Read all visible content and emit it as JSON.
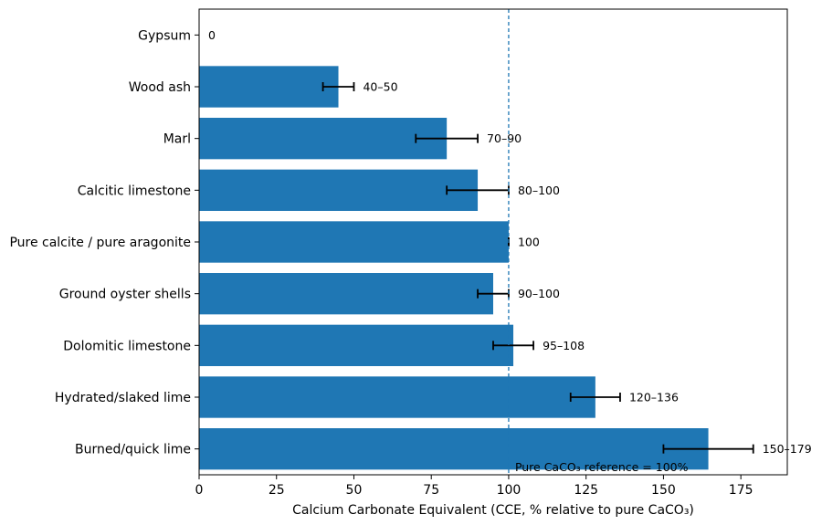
{
  "chart_data": {
    "type": "bar",
    "orientation": "horizontal",
    "categories": [
      "Gypsum",
      "Wood ash",
      "Marl",
      "Calcitic limestone",
      "Pure calcite / pure aragonite",
      "Ground oyster shells",
      "Dolomitic limestone",
      "Hydrated/slaked lime",
      "Burned/quick lime"
    ],
    "values": [
      0,
      45,
      80,
      90,
      100,
      95,
      101.5,
      128,
      164.5
    ],
    "error_ranges": [
      null,
      [
        40,
        50
      ],
      [
        70,
        90
      ],
      [
        80,
        100
      ],
      [
        100,
        100
      ],
      [
        90,
        100
      ],
      [
        95,
        108
      ],
      [
        120,
        136
      ],
      [
        150,
        179
      ]
    ],
    "data_labels": [
      "0",
      "40–50",
      "70–90",
      "80–100",
      "100",
      "90–100",
      "95–108",
      "120–136",
      "150–179"
    ],
    "xlabel": "Calcium Carbonate Equivalent (CCE, % relative to pure CaCO₃)",
    "ylabel": "",
    "title": "",
    "xlim": [
      0,
      190
    ],
    "xticks": [
      0,
      25,
      50,
      75,
      100,
      125,
      150,
      175
    ],
    "reference_line": {
      "value": 100,
      "label": "Pure CaCO₃ reference = 100%",
      "style": "dashed"
    },
    "grid": false,
    "colors": {
      "bar": "#1f77b4",
      "error": "#000000",
      "reference": "#1f77b4"
    }
  }
}
